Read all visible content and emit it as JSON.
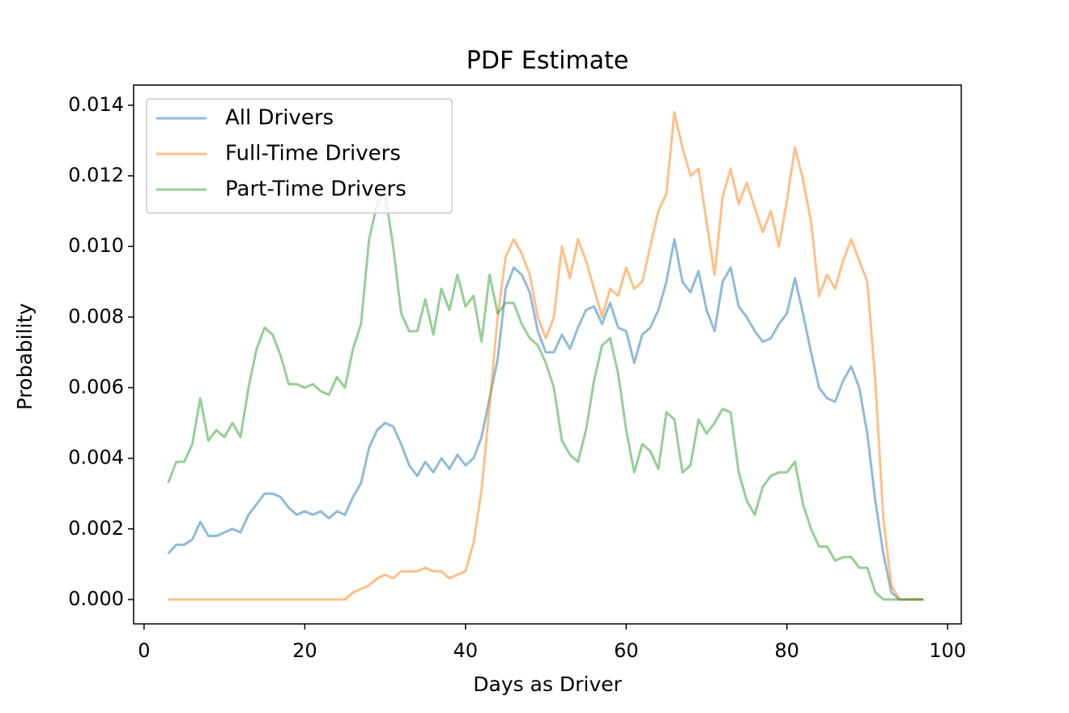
{
  "chart_data": {
    "type": "line",
    "title": "PDF Estimate",
    "x_label": "Days as Driver",
    "y_label": "Probability",
    "x": [
      3,
      4,
      5,
      6,
      7,
      8,
      9,
      10,
      11,
      12,
      13,
      14,
      15,
      16,
      17,
      18,
      19,
      20,
      21,
      22,
      23,
      24,
      25,
      26,
      27,
      28,
      29,
      30,
      31,
      32,
      33,
      34,
      35,
      36,
      37,
      38,
      39,
      40,
      41,
      42,
      43,
      44,
      45,
      46,
      47,
      48,
      49,
      50,
      51,
      52,
      53,
      54,
      55,
      56,
      57,
      58,
      59,
      60,
      61,
      62,
      63,
      64,
      65,
      66,
      67,
      68,
      69,
      70,
      71,
      72,
      73,
      74,
      75,
      76,
      77,
      78,
      79,
      80,
      81,
      82,
      83,
      84,
      85,
      86,
      87,
      88,
      89,
      90,
      91,
      92,
      93,
      94,
      95,
      96,
      97
    ],
    "series": [
      {
        "name": "All Drivers",
        "color": "#1f77b4",
        "values": [
          0.0013,
          0.00155,
          0.00155,
          0.0017,
          0.0022,
          0.0018,
          0.0018,
          0.0019,
          0.002,
          0.0019,
          0.0024,
          0.0027,
          0.003,
          0.003,
          0.0029,
          0.0026,
          0.0024,
          0.0025,
          0.0024,
          0.0025,
          0.0023,
          0.0025,
          0.0024,
          0.0029,
          0.0033,
          0.0043,
          0.0048,
          0.005,
          0.0049,
          0.0044,
          0.0038,
          0.0035,
          0.0039,
          0.0036,
          0.004,
          0.0037,
          0.0041,
          0.0038,
          0.004,
          0.0046,
          0.0057,
          0.0068,
          0.0088,
          0.0094,
          0.0092,
          0.0087,
          0.0076,
          0.007,
          0.007,
          0.0075,
          0.0071,
          0.0077,
          0.0082,
          0.0083,
          0.0078,
          0.0084,
          0.0077,
          0.0076,
          0.0067,
          0.0075,
          0.0077,
          0.0082,
          0.009,
          0.0102,
          0.009,
          0.0087,
          0.0093,
          0.0082,
          0.0076,
          0.009,
          0.0094,
          0.0083,
          0.008,
          0.0076,
          0.0073,
          0.0074,
          0.0078,
          0.0081,
          0.0091,
          0.0081,
          0.007,
          0.006,
          0.0057,
          0.0056,
          0.0062,
          0.0066,
          0.006,
          0.0047,
          0.0028,
          0.0013,
          0.0002,
          0,
          0,
          0,
          0
        ]
      },
      {
        "name": "Full-Time Drivers",
        "color": "#ff7f0e",
        "values": [
          0,
          0,
          0,
          0,
          0,
          0,
          0,
          0,
          0,
          0,
          0,
          0,
          0,
          0,
          0,
          0,
          0,
          0,
          0,
          0,
          0,
          0,
          0,
          0.0002,
          0.0003,
          0.0004,
          0.0006,
          0.0007,
          0.0006,
          0.0008,
          0.0008,
          0.0008,
          0.0009,
          0.0008,
          0.0008,
          0.0006,
          0.0007,
          0.0008,
          0.0016,
          0.0031,
          0.0055,
          0.008,
          0.0097,
          0.0102,
          0.0098,
          0.0092,
          0.008,
          0.0074,
          0.008,
          0.01,
          0.0091,
          0.0102,
          0.0096,
          0.0088,
          0.008,
          0.0088,
          0.0086,
          0.0094,
          0.0088,
          0.009,
          0.01,
          0.011,
          0.0115,
          0.0138,
          0.0128,
          0.012,
          0.0122,
          0.0107,
          0.0092,
          0.0114,
          0.0122,
          0.0112,
          0.0118,
          0.0111,
          0.0104,
          0.011,
          0.01,
          0.0113,
          0.0128,
          0.0119,
          0.0107,
          0.0086,
          0.0092,
          0.0088,
          0.0096,
          0.0102,
          0.0096,
          0.009,
          0.0062,
          0.0023,
          0.0004,
          0,
          0,
          0,
          0
        ]
      },
      {
        "name": "Part-Time Drivers",
        "color": "#2ca02c",
        "values": [
          0.0033,
          0.0039,
          0.0039,
          0.0044,
          0.0057,
          0.0045,
          0.0048,
          0.0046,
          0.005,
          0.0046,
          0.006,
          0.0071,
          0.0077,
          0.0075,
          0.0069,
          0.0061,
          0.0061,
          0.006,
          0.0061,
          0.0059,
          0.0058,
          0.0063,
          0.006,
          0.0071,
          0.0078,
          0.0102,
          0.0112,
          0.0115,
          0.01,
          0.0081,
          0.0076,
          0.0076,
          0.0085,
          0.0075,
          0.0088,
          0.0082,
          0.0092,
          0.0083,
          0.0086,
          0.0073,
          0.0092,
          0.0081,
          0.0084,
          0.0084,
          0.0078,
          0.0074,
          0.0072,
          0.0067,
          0.006,
          0.0045,
          0.0041,
          0.0039,
          0.0048,
          0.0062,
          0.0072,
          0.0074,
          0.0064,
          0.0048,
          0.0036,
          0.0044,
          0.0042,
          0.0037,
          0.0053,
          0.0051,
          0.0036,
          0.0038,
          0.0051,
          0.0047,
          0.005,
          0.0054,
          0.0053,
          0.0036,
          0.0028,
          0.0024,
          0.0032,
          0.0035,
          0.0036,
          0.0036,
          0.0039,
          0.0027,
          0.002,
          0.0015,
          0.0015,
          0.0011,
          0.0012,
          0.0012,
          0.0009,
          0.0009,
          0.0002,
          0,
          0,
          0,
          0,
          0,
          0
        ]
      }
    ],
    "xlim": [
      -1.3,
      101.7
    ],
    "ylim": [
      -0.00069,
      0.01457
    ],
    "xticks": [
      0,
      20,
      40,
      60,
      80,
      100
    ],
    "yticks": [
      {
        "value": 0,
        "label": "0.000"
      },
      0.002,
      0.004,
      0.006,
      0.008,
      {
        "value": 0.01,
        "label": "0.010"
      },
      0.012,
      0.014
    ],
    "legend": "upper left"
  }
}
